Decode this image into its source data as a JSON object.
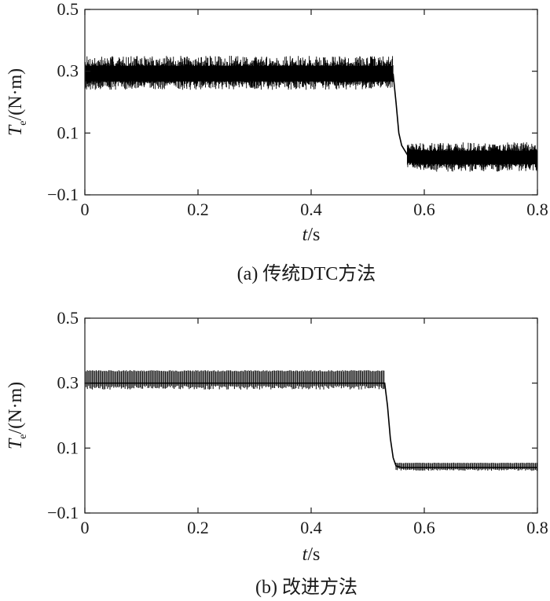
{
  "chart_data": [
    {
      "type": "line",
      "caption": "(a) 传统DTC方法",
      "xlabel": {
        "italic": "t",
        "rest": "/s"
      },
      "ylabel": {
        "italic": "T",
        "sub": "e",
        "rest": "/(N·m)"
      },
      "xlim": [
        0,
        0.8
      ],
      "ylim": [
        -0.1,
        0.5
      ],
      "x_ticks": [
        0,
        0.2,
        0.4,
        0.6,
        0.8
      ],
      "x_tick_labels": [
        "0",
        "0.2",
        "0.4",
        "0.6",
        "0.8"
      ],
      "y_ticks": [
        -0.1,
        0.1,
        0.3,
        0.5
      ],
      "y_tick_labels": [
        "−0.1",
        "0.1",
        "0.3",
        "0.5"
      ],
      "grid": false,
      "series": [
        {
          "color": "#000000",
          "x": [
            0,
            0.1,
            0.2,
            0.3,
            0.4,
            0.5,
            0.545,
            0.55,
            0.555,
            0.56,
            0.57,
            0.6,
            0.7,
            0.8
          ],
          "y": [
            0.29,
            0.29,
            0.29,
            0.29,
            0.29,
            0.29,
            0.29,
            0.2,
            0.1,
            0.06,
            0.03,
            0.02,
            0.02,
            0.02
          ],
          "ripple_band": [
            {
              "x_range": [
                0,
                0.545
              ],
              "y_range": [
                0.24,
                0.35
              ]
            },
            {
              "x_range": [
                0.57,
                0.8
              ],
              "y_range": [
                -0.025,
                0.07
              ]
            }
          ]
        }
      ]
    },
    {
      "type": "line",
      "caption": "(b) 改进方法",
      "xlabel": {
        "italic": "t",
        "rest": "/s"
      },
      "ylabel": {
        "italic": "T",
        "sub": "e",
        "rest": "/(N·m)"
      },
      "xlim": [
        0,
        0.8
      ],
      "ylim": [
        -0.1,
        0.5
      ],
      "x_ticks": [
        0,
        0.2,
        0.4,
        0.6,
        0.8
      ],
      "x_tick_labels": [
        "0",
        "0.2",
        "0.4",
        "0.6",
        "0.8"
      ],
      "y_ticks": [
        -0.1,
        0.1,
        0.3,
        0.5
      ],
      "y_tick_labels": [
        "−0.1",
        "0.1",
        "0.3",
        "0.5"
      ],
      "grid": false,
      "series": [
        {
          "color": "#000000",
          "x": [
            0,
            0.1,
            0.2,
            0.3,
            0.4,
            0.5,
            0.53,
            0.535,
            0.54,
            0.545,
            0.55,
            0.56,
            0.6,
            0.7,
            0.8
          ],
          "y": [
            0.3,
            0.3,
            0.3,
            0.3,
            0.3,
            0.3,
            0.3,
            0.23,
            0.13,
            0.07,
            0.045,
            0.04,
            0.04,
            0.04,
            0.04
          ],
          "ripple_band": [
            {
              "x_range": [
                0,
                0.53
              ],
              "y_range": [
                0.28,
                0.34
              ]
            },
            {
              "x_range": [
                0.55,
                0.8
              ],
              "y_range": [
                0.03,
                0.055
              ]
            }
          ]
        }
      ]
    }
  ]
}
